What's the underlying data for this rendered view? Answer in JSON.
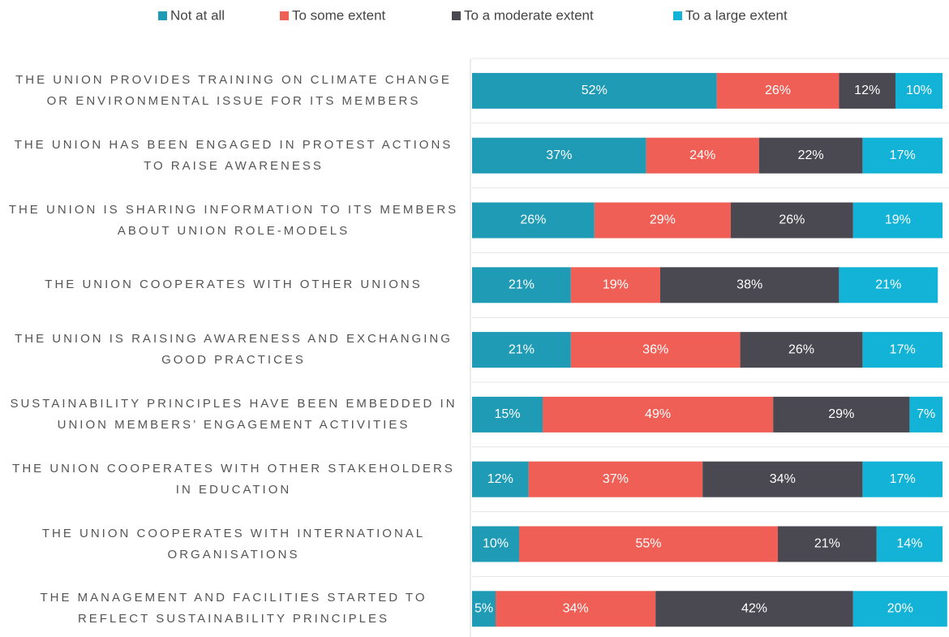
{
  "chart_data": {
    "type": "stacked-bar-horizontal",
    "categories": [
      "THE UNION PROVIDES TRAINING ON CLIMATE CHANGE OR ENVIRONMENTAL ISSUE FOR ITS MEMBERS",
      "THE UNION HAS BEEN ENGAGED IN PROTEST ACTIONS TO RAISE AWARENESS",
      "THE UNION IS SHARING INFORMATION TO ITS MEMBERS ABOUT UNION ROLE-MODELS",
      "THE UNION COOPERATES WITH OTHER UNIONS",
      "THE UNION IS RAISING AWARENESS AND EXCHANGING GOOD PRACTICES",
      "SUSTAINABILITY PRINCIPLES HAVE BEEN EMBEDDED IN UNION MEMBERS’ ENGAGEMENT ACTIVITIES",
      "THE UNION COOPERATES WITH OTHER STAKEHOLDERS IN EDUCATION",
      "THE UNION COOPERATES WITH INTERNATIONAL ORGANISATIONS",
      "THE MANAGEMENT AND FACILITIES STARTED TO REFLECT SUSTAINABILITY PRINCIPLES"
    ],
    "series": [
      {
        "name": "Not at all",
        "color": "#1f9bb5",
        "values": [
          52,
          37,
          26,
          21,
          21,
          15,
          12,
          10,
          5
        ],
        "value_labels": [
          "52%",
          "37%",
          "26%",
          "21%",
          "21%",
          "15%",
          "12%",
          "10%",
          "5%"
        ]
      },
      {
        "name": "To some extent",
        "color": "#ef5f56",
        "values": [
          26,
          24,
          29,
          19,
          36,
          49,
          37,
          55,
          34
        ],
        "value_labels": [
          "26%",
          "24%",
          "29%",
          "19%",
          "36%",
          "49%",
          "37%",
          "55%",
          "34%"
        ]
      },
      {
        "name": "To a moderate extent",
        "color": "#4a4850",
        "values": [
          12,
          22,
          26,
          38,
          26,
          29,
          34,
          21,
          42
        ],
        "value_labels": [
          "12%",
          "22%",
          "26%",
          "38%",
          "26%",
          "29%",
          "34%",
          "21%",
          "42%"
        ]
      },
      {
        "name": "To a large extent",
        "color": "#12b3d6",
        "values": [
          10,
          17,
          19,
          21,
          17,
          7,
          17,
          14,
          20
        ],
        "value_labels": [
          "10%",
          "17%",
          "19%",
          "21%",
          "17%",
          "7%",
          "17%",
          "14%",
          "20%"
        ]
      }
    ],
    "legend": "top"
  }
}
